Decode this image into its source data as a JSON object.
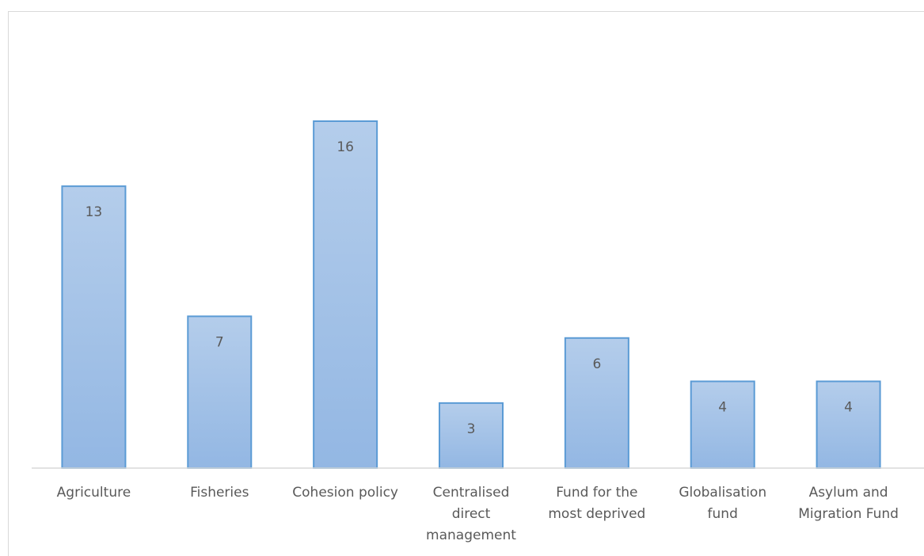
{
  "chart_data": {
    "type": "bar",
    "categories": [
      "Agriculture",
      "Fisheries",
      "Cohesion policy",
      "Centralised direct management",
      "Fund for the most deprived",
      "Globalisation fund",
      "Asylum and Migration Fund"
    ],
    "category_lines": [
      [
        "Agriculture"
      ],
      [
        "Fisheries"
      ],
      [
        "Cohesion policy"
      ],
      [
        "Centralised",
        "direct",
        "management"
      ],
      [
        "Fund for the",
        "most deprived"
      ],
      [
        "Globalisation",
        "fund"
      ],
      [
        "Asylum and",
        "Migration Fund"
      ]
    ],
    "values": [
      13,
      7,
      16,
      3,
      6,
      4,
      4
    ],
    "data_labels": [
      "13",
      "7",
      "16",
      "3",
      "6",
      "4",
      "4"
    ],
    "title": "",
    "xlabel": "",
    "ylabel": "",
    "ylim": [
      0,
      16
    ],
    "grid": false,
    "legend": "none",
    "colors": {
      "bar_fill_top": "#b4cdeb",
      "bar_fill_bottom": "#93b7e3",
      "bar_stroke": "#5b9bd5",
      "axis": "#d9d9d9",
      "text": "#595959"
    }
  }
}
